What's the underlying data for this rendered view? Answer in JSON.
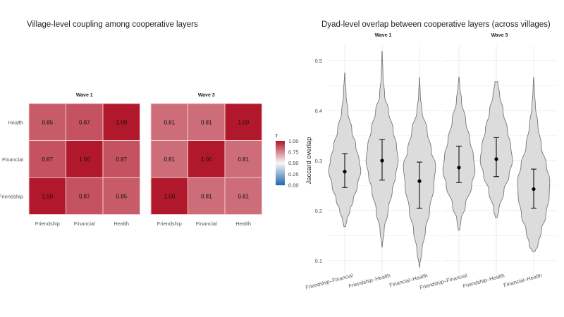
{
  "chart_data": [
    {
      "type": "heatmap",
      "title": "Village-level coupling among cooperative layers",
      "categories": [
        "Friendship",
        "Financial",
        "Health"
      ],
      "legend": {
        "title": "r",
        "ticks": [
          "1.00",
          "0.75",
          "0.50",
          "0.25",
          "0.00"
        ],
        "range": [
          0,
          1
        ],
        "placement": "right",
        "colors": {
          "low": "#2166AC",
          "mid": "#F7F7F7",
          "high": "#B2182B"
        }
      },
      "panels": [
        {
          "name": "Wave 1",
          "matrix": [
            [
              "1.00",
              "0.87",
              "0.85"
            ],
            [
              "0.87",
              "1.00",
              "0.87"
            ],
            [
              "0.85",
              "0.87",
              "1.00"
            ]
          ]
        },
        {
          "name": "Wave 3",
          "matrix": [
            [
              "1.00",
              "0.81",
              "0.81"
            ],
            [
              "0.81",
              "1.00",
              "0.81"
            ],
            [
              "0.81",
              "0.81",
              "1.00"
            ]
          ]
        }
      ]
    },
    {
      "type": "violin",
      "title": "Dyad-level overlap between cooperative layers (across villages)",
      "ylabel": "Jaccard overlap",
      "ylim": [
        0.07,
        0.53
      ],
      "yticks": [
        "0.1",
        "0.2",
        "0.3",
        "0.4",
        "0.5"
      ],
      "grid": true,
      "fill": "#DCDCDC",
      "categories": [
        "Friendship–Financial",
        "Friendship–Health",
        "Financial–Health"
      ],
      "panels": [
        {
          "name": "Wave 1",
          "groups": [
            {
              "mean": 0.278,
              "ci": [
                0.246,
                0.314
              ],
              "range": [
                0.168,
                0.475
              ],
              "density": [
                [
                  0.168,
                  0.05
                ],
                [
                  0.18,
                  0.12
                ],
                [
                  0.2,
                  0.3
                ],
                [
                  0.22,
                  0.5
                ],
                [
                  0.25,
                  0.75
                ],
                [
                  0.28,
                  0.95
                ],
                [
                  0.3,
                  0.85
                ],
                [
                  0.33,
                  0.65
                ],
                [
                  0.36,
                  0.42
                ],
                [
                  0.4,
                  0.18
                ],
                [
                  0.43,
                  0.08
                ],
                [
                  0.475,
                  0.01
                ]
              ]
            },
            {
              "mean": 0.3,
              "ci": [
                0.261,
                0.342
              ],
              "range": [
                0.127,
                0.518
              ],
              "density": [
                [
                  0.127,
                  0.01
                ],
                [
                  0.16,
                  0.12
                ],
                [
                  0.2,
                  0.35
                ],
                [
                  0.24,
                  0.6
                ],
                [
                  0.27,
                  0.8
                ],
                [
                  0.3,
                  0.95
                ],
                [
                  0.33,
                  0.85
                ],
                [
                  0.36,
                  0.65
                ],
                [
                  0.4,
                  0.38
                ],
                [
                  0.43,
                  0.15
                ],
                [
                  0.47,
                  0.05
                ],
                [
                  0.518,
                  0.01
                ]
              ]
            },
            {
              "mean": 0.259,
              "ci": [
                0.205,
                0.297
              ],
              "range": [
                0.087,
                0.466
              ],
              "density": [
                [
                  0.087,
                  0.01
                ],
                [
                  0.12,
                  0.15
                ],
                [
                  0.16,
                  0.35
                ],
                [
                  0.2,
                  0.6
                ],
                [
                  0.25,
                  0.85
                ],
                [
                  0.29,
                  0.95
                ],
                [
                  0.32,
                  0.7
                ],
                [
                  0.36,
                  0.45
                ],
                [
                  0.4,
                  0.15
                ],
                [
                  0.43,
                  0.05
                ],
                [
                  0.466,
                  0.01
                ]
              ]
            }
          ]
        },
        {
          "name": "Wave 3",
          "groups": [
            {
              "mean": 0.286,
              "ci": [
                0.256,
                0.329
              ],
              "range": [
                0.161,
                0.467
              ],
              "density": [
                [
                  0.161,
                  0.04
                ],
                [
                  0.18,
                  0.12
                ],
                [
                  0.21,
                  0.38
                ],
                [
                  0.25,
                  0.75
                ],
                [
                  0.28,
                  0.95
                ],
                [
                  0.31,
                  0.85
                ],
                [
                  0.34,
                  0.65
                ],
                [
                  0.38,
                  0.4
                ],
                [
                  0.42,
                  0.15
                ],
                [
                  0.45,
                  0.05
                ],
                [
                  0.467,
                  0.01
                ]
              ]
            },
            {
              "mean": 0.303,
              "ci": [
                0.268,
                0.346
              ],
              "range": [
                0.186,
                0.458
              ],
              "density": [
                [
                  0.186,
                  0.05
                ],
                [
                  0.2,
                  0.15
                ],
                [
                  0.24,
                  0.45
                ],
                [
                  0.27,
                  0.75
                ],
                [
                  0.3,
                  0.95
                ],
                [
                  0.33,
                  0.85
                ],
                [
                  0.36,
                  0.65
                ],
                [
                  0.4,
                  0.4
                ],
                [
                  0.43,
                  0.2
                ],
                [
                  0.458,
                  0.08
                ]
              ]
            },
            {
              "mean": 0.243,
              "ci": [
                0.205,
                0.283
              ],
              "range": [
                0.118,
                0.466
              ],
              "density": [
                [
                  0.118,
                  0.08
                ],
                [
                  0.13,
                  0.25
                ],
                [
                  0.16,
                  0.45
                ],
                [
                  0.19,
                  0.72
                ],
                [
                  0.23,
                  0.92
                ],
                [
                  0.26,
                  0.95
                ],
                [
                  0.29,
                  0.75
                ],
                [
                  0.33,
                  0.45
                ],
                [
                  0.37,
                  0.25
                ],
                [
                  0.41,
                  0.1
                ],
                [
                  0.44,
                  0.04
                ],
                [
                  0.466,
                  0.01
                ]
              ]
            }
          ]
        }
      ]
    }
  ]
}
